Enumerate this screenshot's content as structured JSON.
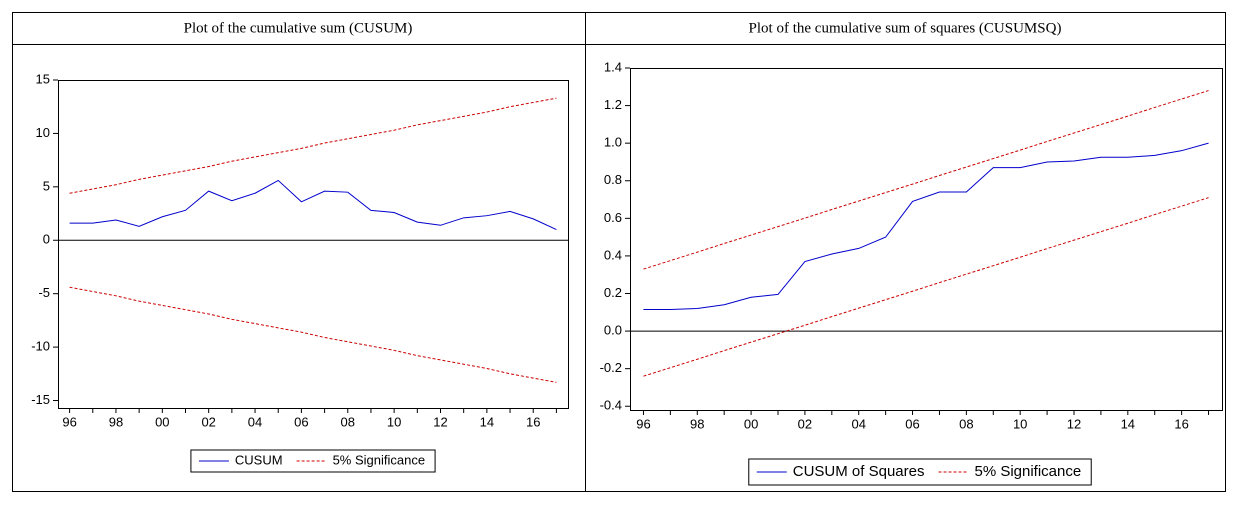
{
  "chart_data": [
    {
      "type": "line",
      "title": "Plot of the cumulative sum (CUSUM)",
      "categories": [
        "96",
        null,
        "98",
        null,
        "00",
        null,
        "02",
        null,
        "04",
        null,
        "06",
        null,
        "08",
        null,
        "10",
        null,
        "12",
        null,
        "14",
        null,
        "16",
        null
      ],
      "series": [
        {
          "name": "CUSUM",
          "color": "#0000cc",
          "line_style": "solid",
          "values": [
            1.6,
            1.6,
            1.9,
            1.3,
            2.2,
            2.8,
            4.6,
            3.7,
            4.4,
            5.6,
            3.6,
            4.6,
            4.5,
            2.8,
            2.6,
            1.7,
            1.4,
            2.1,
            2.3,
            2.7,
            2.0,
            1.0
          ]
        },
        {
          "name": "5% Significance",
          "color": "#cc0000",
          "line_style": "dashed",
          "values": [
            4.4,
            4.8,
            5.2,
            5.7,
            6.1,
            6.5,
            6.9,
            7.4,
            7.8,
            8.2,
            8.6,
            9.1,
            9.5,
            9.9,
            10.3,
            10.8,
            11.2,
            11.6,
            12.0,
            12.5,
            12.9,
            13.3
          ],
          "lower_values": [
            -4.4,
            -4.8,
            -5.2,
            -5.7,
            -6.1,
            -6.5,
            -6.9,
            -7.4,
            -7.8,
            -8.2,
            -8.6,
            -9.1,
            -9.5,
            -9.9,
            -10.3,
            -10.8,
            -11.2,
            -11.6,
            -12.0,
            -12.5,
            -12.9,
            -13.3
          ]
        }
      ],
      "ylim": [
        -15.7,
        15
      ],
      "yticks": [
        -15,
        -10,
        -5,
        0,
        5,
        10,
        15
      ],
      "grid": false
    },
    {
      "type": "line",
      "title": "Plot of the cumulative sum of squares (CUSUMSQ)",
      "categories": [
        "96",
        null,
        "98",
        null,
        "00",
        null,
        "02",
        null,
        "04",
        null,
        "06",
        null,
        "08",
        null,
        "10",
        null,
        "12",
        null,
        "14",
        null,
        "16",
        null
      ],
      "series": [
        {
          "name": "CUSUM of Squares",
          "color": "#0000cc",
          "line_style": "solid",
          "values": [
            0.115,
            0.115,
            0.12,
            0.14,
            0.18,
            0.195,
            0.37,
            0.41,
            0.44,
            0.5,
            0.69,
            0.74,
            0.74,
            0.87,
            0.87,
            0.9,
            0.905,
            0.925,
            0.925,
            0.935,
            0.96,
            1.0
          ]
        },
        {
          "name": "5% Significance",
          "color": "#cc0000",
          "line_style": "dashed",
          "values": [
            0.33,
            0.375,
            0.42,
            0.466,
            0.511,
            0.556,
            0.601,
            0.647,
            0.692,
            0.737,
            0.782,
            0.828,
            0.873,
            0.918,
            0.963,
            1.009,
            1.054,
            1.099,
            1.144,
            1.19,
            1.235,
            1.28
          ],
          "lower_values": [
            -0.24,
            -0.195,
            -0.15,
            -0.104,
            -0.059,
            -0.014,
            0.031,
            0.077,
            0.122,
            0.167,
            0.212,
            0.258,
            0.303,
            0.348,
            0.393,
            0.439,
            0.484,
            0.529,
            0.574,
            0.62,
            0.665,
            0.71
          ]
        }
      ],
      "ylim": [
        -0.42,
        1.4
      ],
      "yticks": [
        -0.4,
        -0.2,
        {
          "value": 0,
          "label": "0.0"
        },
        0.2,
        0.4,
        0.6,
        0.8,
        {
          "value": 1,
          "label": "1.0"
        },
        1.2,
        1.4
      ],
      "grid": false
    }
  ]
}
